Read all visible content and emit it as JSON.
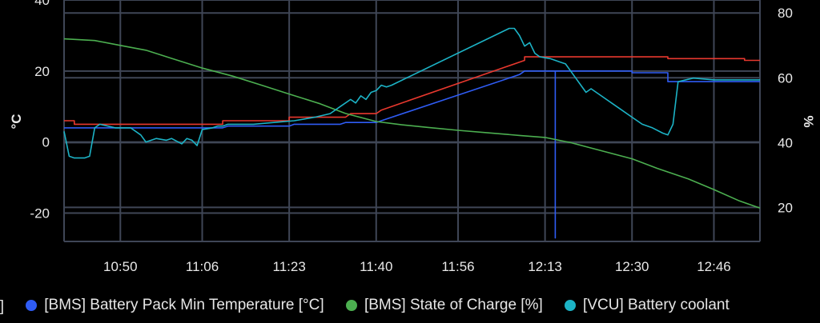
{
  "chart_data": {
    "type": "line",
    "x_ticks": [
      "10:50",
      "11:06",
      "11:23",
      "11:40",
      "11:56",
      "12:13",
      "12:30",
      "12:46"
    ],
    "xlim": [
      "10:39",
      "12:55"
    ],
    "y_left": {
      "label": "°C",
      "ticks": [
        40,
        20,
        0,
        -20
      ],
      "lim": [
        -28,
        40
      ]
    },
    "y_right": {
      "label": "%",
      "ticks": [
        80,
        60,
        40,
        20
      ],
      "lim": [
        9.5,
        84
      ]
    },
    "grid": true,
    "legend_position": "bottom",
    "legend": [
      {
        "text": "C]",
        "color": ""
      },
      {
        "text": "[BMS] Battery Pack Min Temperature [°C]",
        "color": "#2f5cf5"
      },
      {
        "text": "[BMS] State of Charge [%]",
        "color": "#4caf50"
      },
      {
        "text": "[VCU] Battery coolant",
        "color": "#1cb3c6"
      }
    ],
    "series": [
      {
        "name": "[BMS] Battery Pack Max Temperature [°C]",
        "axis": "left",
        "color": "#e8382e",
        "x": [
          "10:39",
          "10:41",
          "10:41",
          "10:52",
          "10:52",
          "11:10",
          "11:10",
          "11:23",
          "11:23",
          "11:34",
          "11:35",
          "11:40",
          "11:41",
          "12:05",
          "12:09",
          "12:09",
          "12:37",
          "12:37",
          "12:52",
          "12:52",
          "12:55"
        ],
        "y": [
          6,
          6,
          5,
          5,
          5,
          5,
          6,
          6,
          7,
          7,
          8,
          8,
          9,
          21,
          23,
          24,
          24,
          23.5,
          23.5,
          23,
          23
        ]
      },
      {
        "name": "[BMS] Battery Pack Min Temperature [°C]",
        "axis": "left",
        "color": "#2f5cf5",
        "x": [
          "10:39",
          "11:10",
          "11:11",
          "11:23",
          "11:24",
          "11:33",
          "11:34",
          "11:40",
          "11:41",
          "12:08",
          "12:09",
          "12:15",
          "12:15",
          "12:15",
          "12:16",
          "12:30",
          "12:30",
          "12:37",
          "12:37",
          "12:55"
        ],
        "y": [
          4,
          4,
          4.5,
          4.5,
          5,
          5,
          5.5,
          5.5,
          6,
          19,
          20,
          20,
          -27,
          20,
          20,
          20,
          19.5,
          19.5,
          17,
          17
        ]
      },
      {
        "name": "[BMS] State of Charge [%]",
        "axis": "right",
        "color": "#4caf50",
        "x": [
          "10:39",
          "10:45",
          "10:50",
          "10:55",
          "11:00",
          "11:06",
          "11:12",
          "11:18",
          "11:23",
          "11:29",
          "11:34",
          "11:40",
          "11:45",
          "11:50",
          "11:56",
          "12:02",
          "12:08",
          "12:13",
          "12:18",
          "12:24",
          "12:30",
          "12:35",
          "12:41",
          "12:46",
          "12:51",
          "12:55"
        ],
        "y": [
          72,
          71.5,
          70,
          68.5,
          66,
          63,
          60.5,
          57.5,
          55,
          52,
          49,
          46.5,
          45.5,
          44.7,
          43.8,
          43,
          42.2,
          41.6,
          40,
          37.5,
          35,
          32,
          28.8,
          25.5,
          22,
          19.8
        ]
      },
      {
        "name": "[VCU] Battery coolant",
        "axis": "left",
        "color": "#1cb3c6",
        "x": [
          "10:39",
          "10:40",
          "10:41",
          "10:43",
          "10:44",
          "10:45",
          "10:46",
          "10:49",
          "10:52",
          "10:54",
          "10:55",
          "10:57",
          "10:59",
          "11:00",
          "11:02",
          "11:03",
          "11:04",
          "11:05",
          "11:06",
          "11:08",
          "11:09",
          "11:10",
          "11:11",
          "11:13",
          "11:16",
          "11:20",
          "11:24",
          "11:28",
          "11:31",
          "11:33",
          "11:35",
          "11:36",
          "11:37",
          "11:38",
          "11:39",
          "11:40",
          "11:41",
          "11:42",
          "11:43",
          "12:06",
          "12:07",
          "12:08",
          "12:09",
          "12:10",
          "12:11",
          "12:12",
          "12:14",
          "12:15",
          "12:16",
          "12:17",
          "12:18",
          "12:19",
          "12:20",
          "12:21",
          "12:22",
          "12:24",
          "12:26",
          "12:28",
          "12:30",
          "12:32",
          "12:34",
          "12:36",
          "12:37",
          "12:38",
          "12:39",
          "12:42",
          "12:46",
          "12:50",
          "12:55"
        ],
        "y": [
          3,
          -4,
          -4.5,
          -4.5,
          -4,
          4,
          5,
          4,
          4,
          2,
          0,
          1,
          0.5,
          1,
          -0.5,
          1,
          0.5,
          -1,
          3.5,
          4,
          4.5,
          4.5,
          5,
          5,
          5,
          5.5,
          6,
          7,
          8,
          10,
          12,
          11,
          13,
          12,
          14,
          14.5,
          16,
          15.5,
          16,
          32,
          32,
          30,
          27,
          28,
          25,
          24,
          23.5,
          23,
          22.5,
          22,
          20,
          18,
          16,
          14,
          15,
          13,
          11,
          9,
          7,
          5,
          4,
          2.5,
          2,
          5,
          17,
          18,
          17.5,
          17.5,
          17.5
        ]
      }
    ]
  }
}
